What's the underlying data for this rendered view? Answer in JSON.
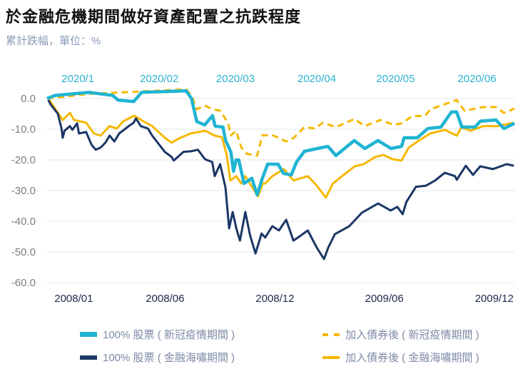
{
  "title": "於金融危機期間做好資產配置之抗跌程度",
  "subtitle": "累計跌幅，單位：%",
  "chart_data": {
    "type": "line",
    "title": "於金融危機期間做好資產配置之抗跌程度",
    "ylabel": "累計跌幅，單位：%",
    "ylim": [
      -60,
      0
    ],
    "yticks": [
      "0.0",
      "-10.0",
      "-20.0",
      "-30.0",
      "-40.0",
      "-50.0",
      "-60.0"
    ],
    "ytick_values": [
      0,
      -10,
      -20,
      -30,
      -40,
      -50,
      -60
    ],
    "grid": true,
    "legend": "bottom",
    "top_axis": {
      "range": [
        "2019-12-23",
        "2020-06-18"
      ],
      "ticks": [
        {
          "label": "2020/1",
          "date": "2020-01-01"
        },
        {
          "label": "2020/02",
          "date": "2020-02-01"
        },
        {
          "label": "2020/03",
          "date": "2020-03-01"
        },
        {
          "label": "2020/04",
          "date": "2020-04-01"
        },
        {
          "label": "2020/05",
          "date": "2020-05-01"
        },
        {
          "label": "2020/06",
          "date": "2020-06-01"
        }
      ],
      "color": "#2bb3cf"
    },
    "bottom_axis": {
      "range": [
        "2007-11-20",
        "2010-01-06"
      ],
      "ticks": [
        {
          "label": "2008/01",
          "date": "2008-01-01"
        },
        {
          "label": "2008/06",
          "date": "2008-06-01"
        },
        {
          "label": "2008/12",
          "date": "2008-12-01"
        },
        {
          "label": "2009/06",
          "date": "2009-06-01"
        },
        {
          "label": "2009/12",
          "date": "2009-12-01"
        }
      ]
    },
    "series": [
      {
        "name": "100% 股票 ( 新冠疫情期間 )",
        "axis": "top",
        "color": "#20b4d3",
        "style": "solid",
        "weight": "thick",
        "x": [
          "2019-12-23",
          "2019-12-26",
          "2020-01-08",
          "2020-01-17",
          "2020-01-19",
          "2020-01-25",
          "2020-01-28",
          "2020-02-14",
          "2020-02-16",
          "2020-02-18",
          "2020-02-21",
          "2020-02-24",
          "2020-02-25",
          "2020-02-28",
          "2020-02-29",
          "2020-03-02",
          "2020-03-03",
          "2020-03-04",
          "2020-03-05",
          "2020-03-07",
          "2020-03-10",
          "2020-03-12",
          "2020-03-14",
          "2020-03-16",
          "2020-03-20",
          "2020-03-22",
          "2020-03-25",
          "2020-03-27",
          "2020-03-30",
          "2020-04-04",
          "2020-04-08",
          "2020-04-11",
          "2020-04-18",
          "2020-04-22",
          "2020-04-27",
          "2020-05-02",
          "2020-05-06",
          "2020-05-07",
          "2020-05-12",
          "2020-05-16",
          "2020-05-21",
          "2020-05-25",
          "2020-05-27",
          "2020-05-29",
          "2020-06-03",
          "2020-06-05",
          "2020-06-11",
          "2020-06-14",
          "2020-06-18"
        ],
        "y": [
          0,
          1,
          2,
          1,
          -0.5,
          -1,
          2,
          2.5,
          0,
          -7.5,
          -8.6,
          -5.6,
          -9,
          -9.3,
          -13.7,
          -17.4,
          -23.7,
          -20,
          -20,
          -27.7,
          -26,
          -31.4,
          -26,
          -21.4,
          -21.4,
          -24.4,
          -24.9,
          -20.7,
          -17.2,
          -16.3,
          -15.6,
          -18.6,
          -13.7,
          -16.3,
          -13.7,
          -16.3,
          -15.6,
          -12.8,
          -12.8,
          -9.8,
          -9.3,
          -4.4,
          -4.4,
          -9.3,
          -9.3,
          -7.4,
          -7,
          -9.8,
          -8.1
        ]
      },
      {
        "name": "100% 股票 ( 金融海嘯期間 )",
        "axis": "bottom",
        "color": "#1b3766",
        "style": "solid",
        "weight": "normal",
        "x": [
          "2007-11-22",
          "2007-11-26",
          "2007-12-08",
          "2007-12-14",
          "2007-12-16",
          "2007-12-19",
          "2007-12-28",
          "2008-01-01",
          "2008-01-09",
          "2008-01-12",
          "2008-01-24",
          "2008-02-02",
          "2008-02-09",
          "2008-02-17",
          "2008-02-25",
          "2008-03-03",
          "2008-03-11",
          "2008-03-19",
          "2008-04-04",
          "2008-04-12",
          "2008-04-16",
          "2008-04-24",
          "2008-05-06",
          "2008-05-13",
          "2008-06-03",
          "2008-06-14",
          "2008-06-18",
          "2008-07-04",
          "2008-07-16",
          "2008-07-28",
          "2008-08-09",
          "2008-08-21",
          "2008-08-25",
          "2008-09-03",
          "2008-09-12",
          "2008-09-18",
          "2008-09-24",
          "2008-09-30",
          "2008-10-06",
          "2008-10-15",
          "2008-10-23",
          "2008-11-01",
          "2008-11-11",
          "2008-11-17",
          "2008-11-29",
          "2008-12-10",
          "2008-12-22",
          "2009-01-03",
          "2009-01-15",
          "2009-01-27",
          "2009-02-11",
          "2009-02-23",
          "2009-03-02",
          "2009-03-13",
          "2009-04-06",
          "2009-04-27",
          "2009-05-24",
          "2009-06-14",
          "2009-06-25",
          "2009-07-04",
          "2009-07-10",
          "2009-07-26",
          "2009-08-12",
          "2009-08-27",
          "2009-09-12",
          "2009-09-29",
          "2009-10-02",
          "2009-10-17",
          "2009-10-29",
          "2009-11-10",
          "2009-12-01",
          "2009-12-24",
          "2010-01-05"
        ],
        "y": [
          -0.5,
          -2,
          -5,
          -9.8,
          -12.8,
          -10.5,
          -9,
          -10.2,
          -8.1,
          -11.4,
          -10.9,
          -15.1,
          -16.7,
          -16,
          -14.4,
          -12.1,
          -14,
          -11.4,
          -9,
          -7.9,
          -6.5,
          -9,
          -9.8,
          -12.1,
          -17.4,
          -19,
          -20.2,
          -17.4,
          -17.2,
          -16.7,
          -19.8,
          -20.7,
          -25.3,
          -21.4,
          -29,
          -42.3,
          -37,
          -42.3,
          -46.3,
          -37,
          -44.7,
          -50.5,
          -44,
          -45.3,
          -41.6,
          -43,
          -39.5,
          -46.3,
          -44.7,
          -43,
          -48.6,
          -52.3,
          -48.6,
          -44.2,
          -41.6,
          -37.2,
          -34.2,
          -36.5,
          -35.3,
          -37.7,
          -33.7,
          -28.8,
          -28.4,
          -26.7,
          -24.2,
          -25.3,
          -26.5,
          -21.9,
          -24.9,
          -22.1,
          -23,
          -21.4,
          -21.9
        ]
      },
      {
        "name": "加入債券後 ( 新冠疫情期間 )",
        "axis": "top",
        "color": "#f5b800",
        "style": "dashed",
        "weight": "normal",
        "x": [
          "2019-12-23",
          "2020-01-08",
          "2020-02-14",
          "2020-02-16",
          "2020-02-18",
          "2020-02-21",
          "2020-02-24",
          "2020-02-27",
          "2020-03-01",
          "2020-03-02",
          "2020-03-04",
          "2020-03-06",
          "2020-03-08",
          "2020-03-12",
          "2020-03-14",
          "2020-03-18",
          "2020-03-23",
          "2020-03-26",
          "2020-03-30",
          "2020-04-03",
          "2020-04-06",
          "2020-04-11",
          "2020-04-18",
          "2020-04-22",
          "2020-04-28",
          "2020-05-03",
          "2020-05-06",
          "2020-05-10",
          "2020-05-15",
          "2020-05-17",
          "2020-05-22",
          "2020-05-27",
          "2020-05-30",
          "2020-06-06",
          "2020-06-11",
          "2020-06-14",
          "2020-06-18"
        ],
        "y": [
          0,
          1.5,
          3,
          1,
          -3.5,
          -2.3,
          -3.5,
          -4,
          -8.1,
          -12,
          -10.5,
          -16,
          -18,
          -18.6,
          -12,
          -12,
          -14,
          -12.8,
          -9.3,
          -9.8,
          -7.9,
          -9.3,
          -6.7,
          -9,
          -7,
          -8.6,
          -8.1,
          -5.8,
          -5.6,
          -3.5,
          -2,
          -0.5,
          -4,
          -2.8,
          -2.8,
          -4.7,
          -3.3
        ]
      },
      {
        "name": "加入債券後 ( 金融海嘯期間 )",
        "axis": "bottom",
        "color": "#f5b800",
        "style": "solid",
        "weight": "normal",
        "x": [
          "2007-11-22",
          "2007-12-04",
          "2007-12-16",
          "2007-12-28",
          "2008-01-04",
          "2008-01-24",
          "2008-02-06",
          "2008-02-17",
          "2008-03-03",
          "2008-03-15",
          "2008-03-26",
          "2008-04-13",
          "2008-04-28",
          "2008-05-13",
          "2008-06-03",
          "2008-06-14",
          "2008-06-29",
          "2008-07-16",
          "2008-08-09",
          "2008-08-25",
          "2008-09-06",
          "2008-09-14",
          "2008-09-20",
          "2008-09-30",
          "2008-10-08",
          "2008-10-15",
          "2008-10-27",
          "2008-11-05",
          "2008-11-13",
          "2008-11-17",
          "2008-11-29",
          "2008-12-18",
          "2009-01-03",
          "2009-01-27",
          "2009-02-11",
          "2009-02-26",
          "2009-03-10",
          "2009-03-25",
          "2009-04-15",
          "2009-04-30",
          "2009-05-20",
          "2009-06-02",
          "2009-06-17",
          "2009-07-02",
          "2009-07-14",
          "2009-07-31",
          "2009-08-19",
          "2009-09-12",
          "2009-10-02",
          "2009-10-10",
          "2009-10-25",
          "2009-11-15",
          "2009-12-09",
          "2010-01-05"
        ],
        "y": [
          0,
          -3.5,
          -7,
          -4.7,
          -7,
          -7.9,
          -11.4,
          -12.1,
          -9,
          -9.8,
          -7.4,
          -5.6,
          -7.4,
          -9,
          -12.8,
          -14.4,
          -12.8,
          -11.4,
          -10.5,
          -12.1,
          -12.6,
          -18.4,
          -26.7,
          -25.3,
          -27.7,
          -25.3,
          -29,
          -31.9,
          -27.7,
          -27.7,
          -25.3,
          -23,
          -26.7,
          -25.3,
          -28.4,
          -32.3,
          -27.7,
          -25.3,
          -22.1,
          -21.4,
          -19,
          -18.4,
          -19.8,
          -20.2,
          -16,
          -13.7,
          -11.4,
          -10.2,
          -12.1,
          -9.3,
          -10.5,
          -9,
          -9,
          -7.9
        ]
      }
    ]
  },
  "legend": [
    {
      "label": "100% 股票 ( 新冠疫情期間 )"
    },
    {
      "label": "加入債券後 ( 新冠疫情期間 )"
    },
    {
      "label": "100% 股票 ( 金融海嘯期間 )"
    },
    {
      "label": "加入債券後 ( 金融海嘯期間 )"
    }
  ]
}
